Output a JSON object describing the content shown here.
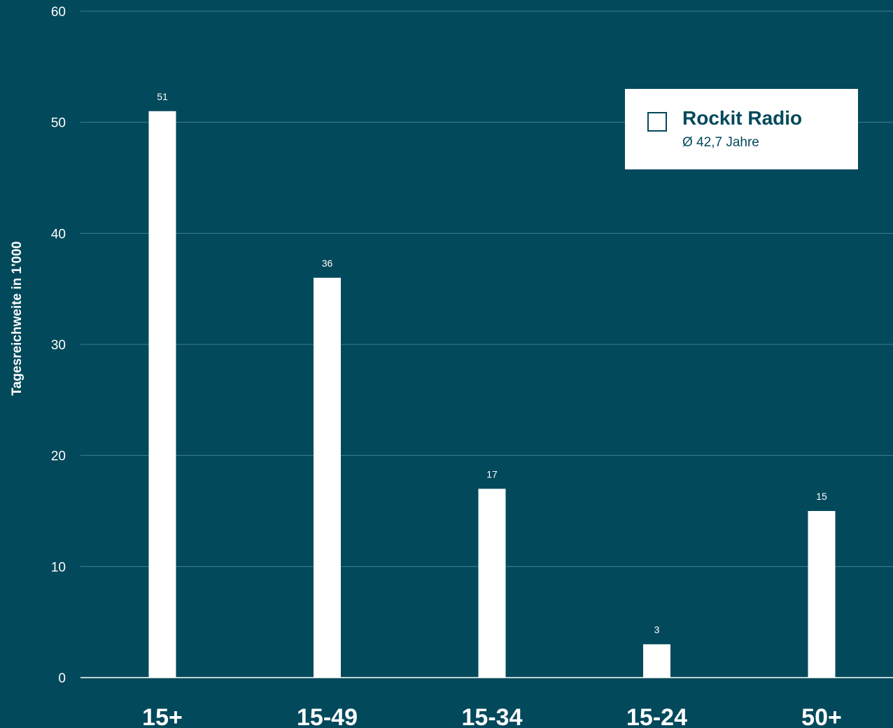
{
  "chart_data": {
    "type": "bar",
    "categories": [
      "15+",
      "15-49",
      "15-34",
      "15-24",
      "50+"
    ],
    "series": [
      {
        "name": "Rockit Radio",
        "values": [
          51,
          36,
          17,
          3,
          15
        ]
      }
    ],
    "ylabel": "Tagesreichweite in 1'000",
    "ylim": [
      0,
      60
    ],
    "yticks": [
      0,
      10,
      20,
      30,
      40,
      50,
      60
    ],
    "grid": true,
    "data_labels": true,
    "legend_position": "top-right"
  },
  "legend": {
    "name": "Rockit Radio",
    "subtitle": "Ø 42,7 Jahre"
  },
  "colors": {
    "background": "#02495b",
    "bar": "#ffffff",
    "grid": "#3f8092",
    "text": "#ffffff",
    "legend_text": "#02495b"
  }
}
